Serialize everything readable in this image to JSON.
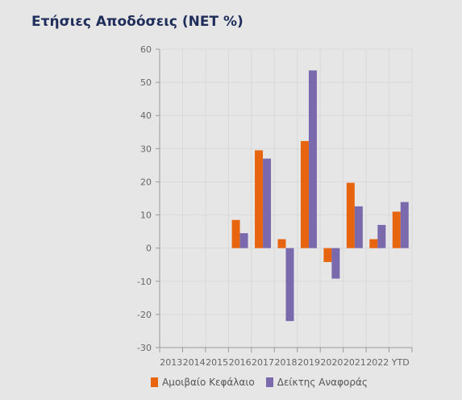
{
  "chart_data": {
    "type": "bar",
    "title": "Ετήσιες Αποδόσεις (NET %)",
    "xlabel": "",
    "ylabel": "",
    "categories": [
      "2013",
      "2014",
      "2015",
      "2016",
      "2017",
      "2018",
      "2019",
      "2020",
      "2021",
      "2022",
      "YTD"
    ],
    "series": [
      {
        "name": "Αμοιβαίο Κεφάλαιο",
        "color": "#e8650f",
        "values": [
          null,
          null,
          null,
          8.5,
          29.5,
          2.7,
          32.3,
          -4.2,
          19.7,
          2.7,
          11
        ]
      },
      {
        "name": "Δείκτης Αναφοράς",
        "color": "#7b69ad",
        "values": [
          null,
          null,
          null,
          4.5,
          27,
          -22,
          53.6,
          -9.2,
          12.6,
          7,
          13.9
        ]
      }
    ],
    "ylim": [
      -30,
      60
    ],
    "yticks": [
      60,
      50,
      40,
      30,
      20,
      10,
      0,
      -10,
      -20,
      -30
    ],
    "grid": true,
    "legend": "bottom"
  }
}
